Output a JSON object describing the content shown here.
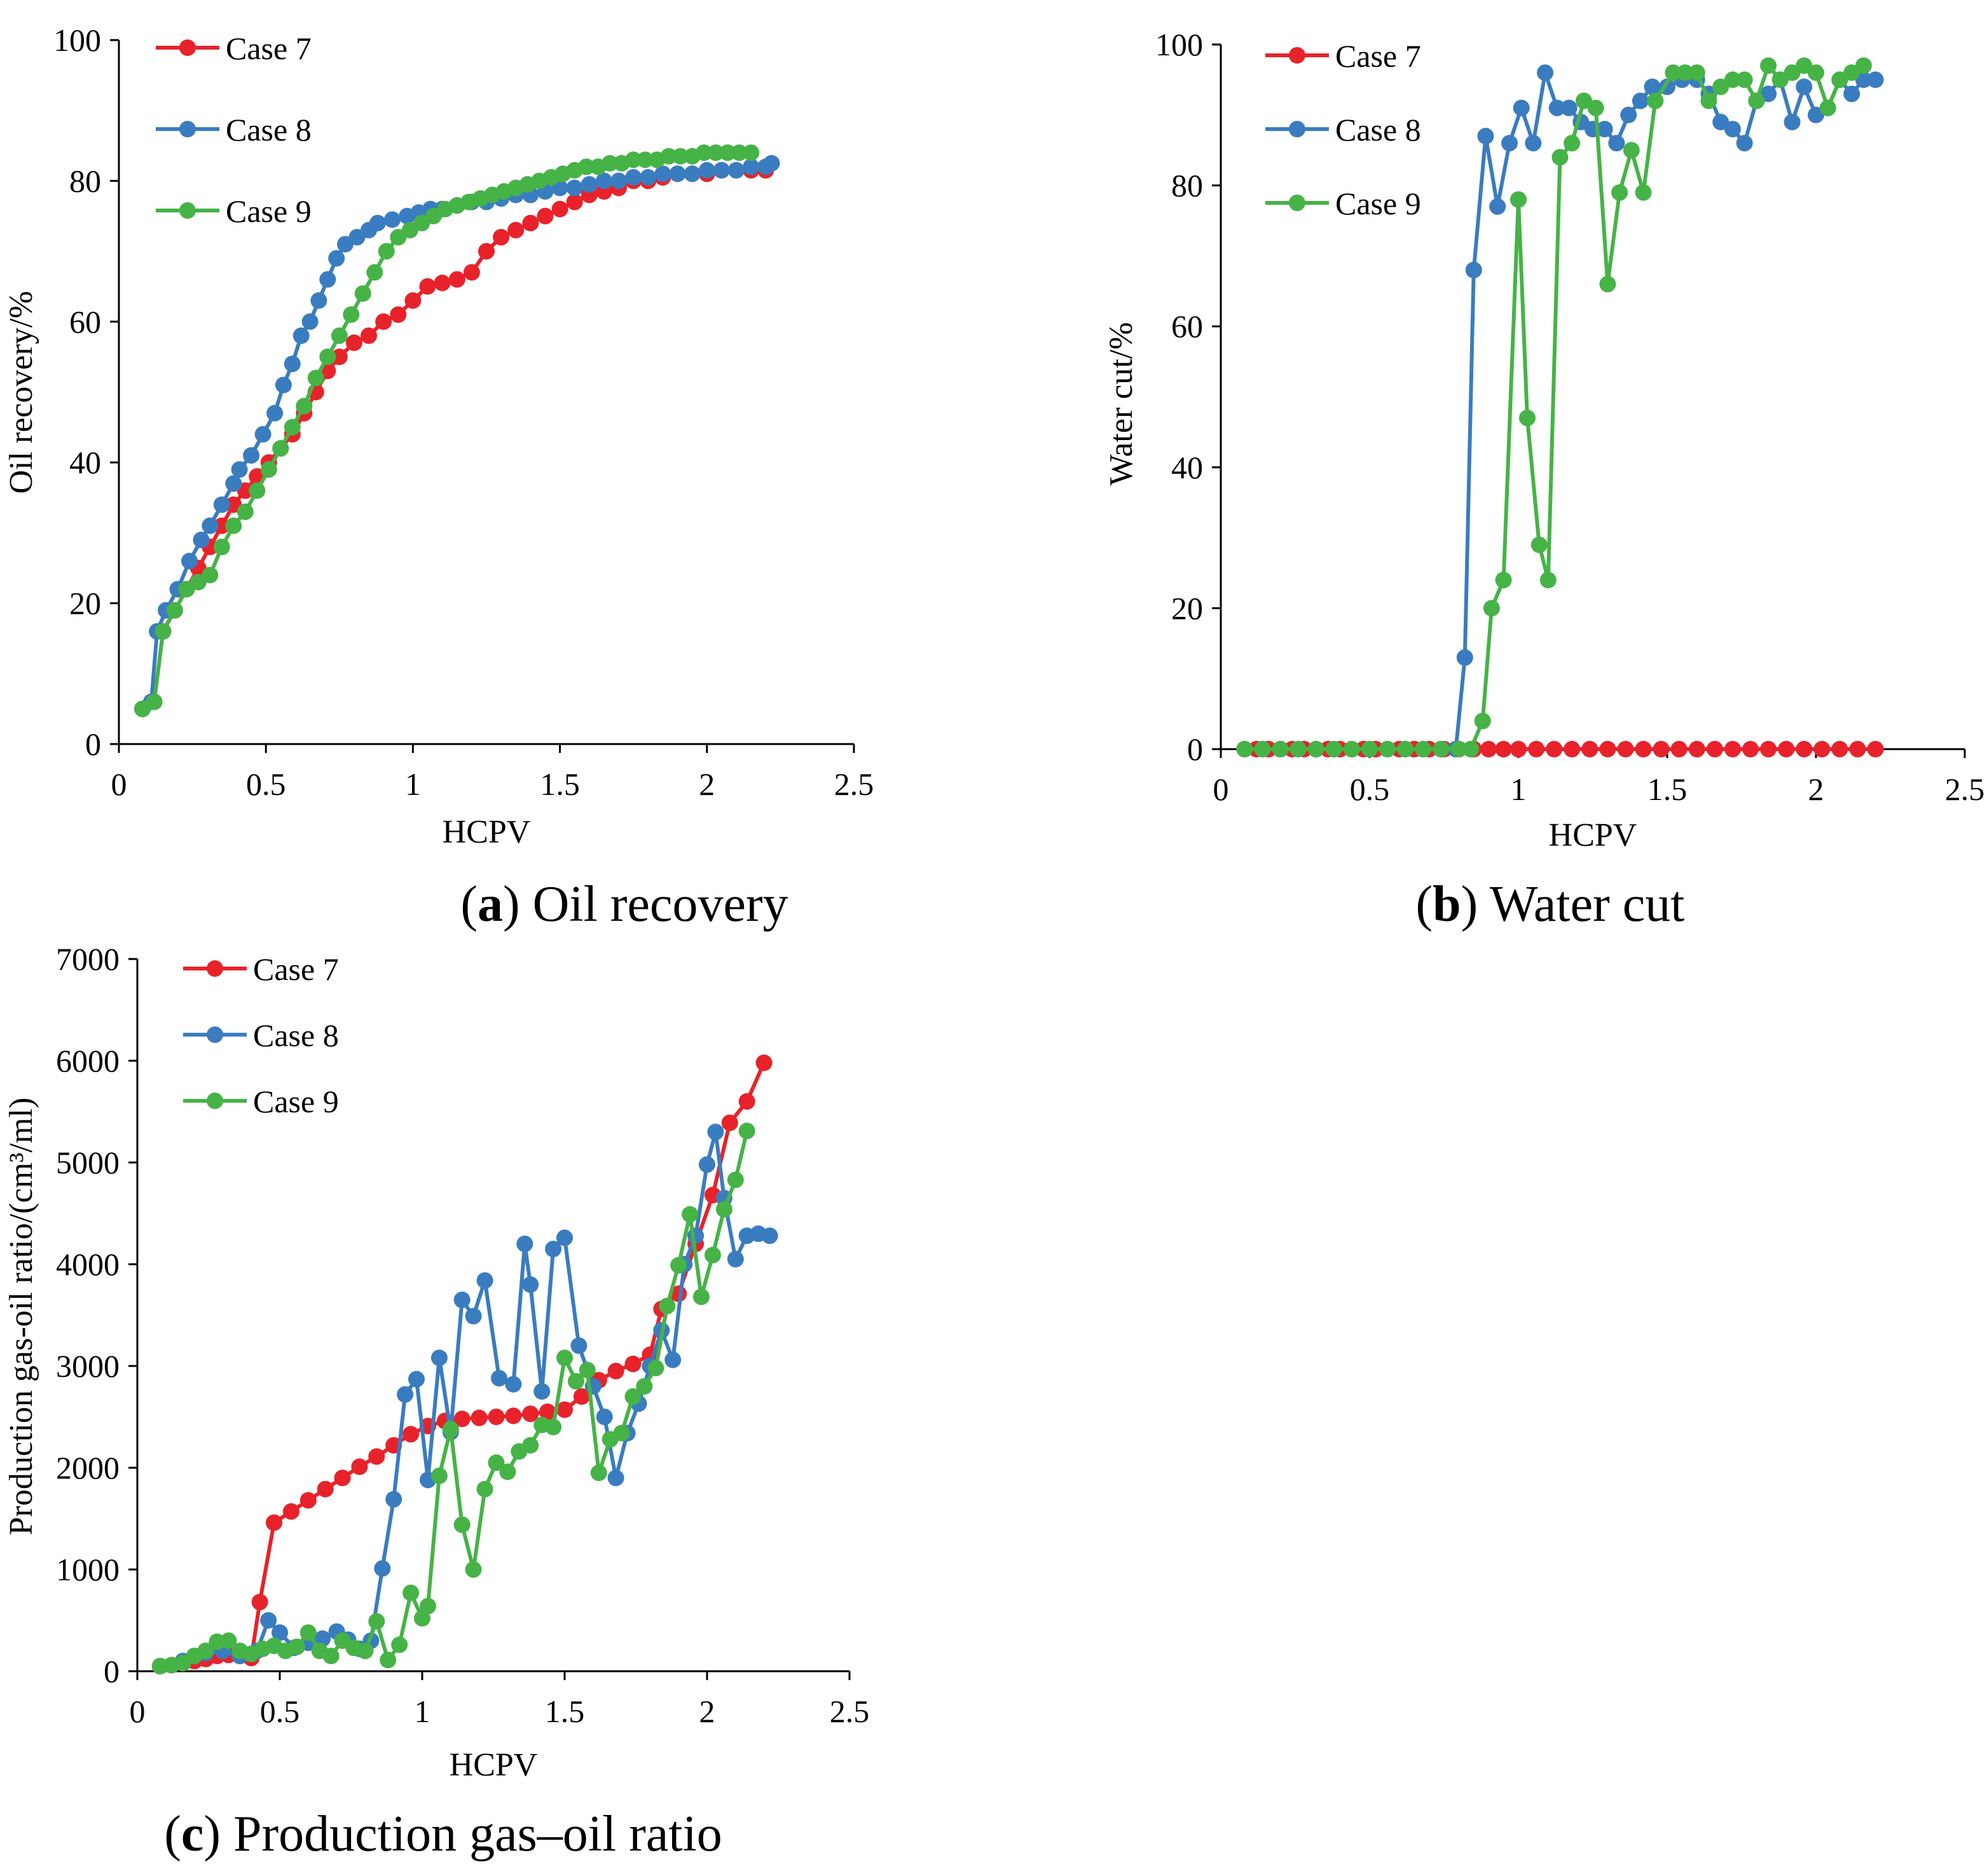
{
  "colors": {
    "case7": "#e8222a",
    "case8": "#3a7cc0",
    "case9": "#46b346",
    "axis": "#000000"
  },
  "chart_data": [
    {
      "type": "line",
      "caption_letter": "a",
      "caption_text": "Oil recovery",
      "xlabel": "HCPV",
      "ylabel": "Oil recovery/%",
      "xlim": [
        0,
        2.5
      ],
      "ylim": [
        0,
        100
      ],
      "xticks": [
        "0",
        "0.5",
        "1",
        "1.5",
        "2",
        "2.5"
      ],
      "yticks": [
        "0",
        "20",
        "40",
        "60",
        "80",
        "100"
      ],
      "legend_placement": "top-left",
      "series": [
        {
          "name": "Case 7",
          "color": "#e8222a",
          "x": [
            0.08,
            0.12,
            0.15,
            0.19,
            0.23,
            0.27,
            0.31,
            0.35,
            0.39,
            0.43,
            0.47,
            0.51,
            0.55,
            0.59,
            0.63,
            0.67,
            0.71,
            0.75,
            0.8,
            0.85,
            0.9,
            0.95,
            1.0,
            1.05,
            1.1,
            1.15,
            1.2,
            1.25,
            1.3,
            1.35,
            1.4,
            1.45,
            1.5,
            1.55,
            1.6,
            1.65,
            1.7,
            1.75,
            1.8,
            1.85,
            1.9,
            1.95,
            2.0,
            2.05,
            2.1,
            2.15,
            2.2
          ],
          "y": [
            5,
            6,
            16,
            19,
            22,
            25,
            28,
            31,
            34,
            36,
            38,
            40,
            42,
            44,
            47,
            50,
            53,
            55,
            57,
            58,
            60,
            61,
            63,
            65,
            65.5,
            66,
            67,
            70,
            72,
            73,
            74,
            75,
            76,
            77,
            78,
            78.5,
            79,
            80,
            80,
            80.5,
            81,
            81,
            81,
            81.5,
            81.5,
            81.5,
            81.5
          ]
        },
        {
          "name": "Case 8",
          "color": "#3a7cc0",
          "x": [
            0.08,
            0.11,
            0.13,
            0.16,
            0.2,
            0.24,
            0.28,
            0.31,
            0.35,
            0.39,
            0.41,
            0.45,
            0.49,
            0.53,
            0.56,
            0.59,
            0.62,
            0.65,
            0.68,
            0.71,
            0.74,
            0.77,
            0.81,
            0.85,
            0.88,
            0.93,
            0.98,
            1.02,
            1.06,
            1.1,
            1.15,
            1.2,
            1.25,
            1.3,
            1.35,
            1.4,
            1.45,
            1.5,
            1.55,
            1.6,
            1.65,
            1.7,
            1.75,
            1.8,
            1.85,
            1.9,
            1.95,
            2.0,
            2.05,
            2.1,
            2.15,
            2.2,
            2.22
          ],
          "y": [
            5,
            6,
            16,
            19,
            22,
            26,
            29,
            31,
            34,
            37,
            39,
            41,
            44,
            47,
            51,
            54,
            58,
            60,
            63,
            66,
            69,
            71,
            72,
            73,
            74,
            74.5,
            75,
            75.5,
            76,
            76,
            76.5,
            77,
            77,
            77.5,
            78,
            78,
            78.5,
            79,
            79,
            79.5,
            80,
            80,
            80.5,
            80.5,
            81,
            81,
            81,
            81.5,
            81.5,
            81.5,
            82,
            82,
            82.5
          ]
        },
        {
          "name": "Case 9",
          "color": "#46b346",
          "x": [
            0.08,
            0.12,
            0.15,
            0.19,
            0.23,
            0.27,
            0.31,
            0.35,
            0.39,
            0.43,
            0.47,
            0.51,
            0.55,
            0.59,
            0.63,
            0.67,
            0.71,
            0.75,
            0.79,
            0.83,
            0.87,
            0.91,
            0.95,
            0.99,
            1.03,
            1.07,
            1.11,
            1.15,
            1.19,
            1.23,
            1.27,
            1.31,
            1.35,
            1.39,
            1.43,
            1.47,
            1.51,
            1.55,
            1.59,
            1.63,
            1.67,
            1.71,
            1.75,
            1.79,
            1.83,
            1.87,
            1.91,
            1.95,
            1.99,
            2.03,
            2.07,
            2.11,
            2.15
          ],
          "y": [
            5,
            6,
            16,
            19,
            22,
            23,
            24,
            28,
            31,
            33,
            36,
            39,
            42,
            45,
            48,
            52,
            55,
            58,
            61,
            64,
            67,
            70,
            72,
            73,
            74,
            75,
            76,
            76.5,
            77,
            77.5,
            78,
            78.5,
            79,
            79.5,
            80,
            80.5,
            81,
            81.5,
            82,
            82,
            82.5,
            82.5,
            83,
            83,
            83,
            83.5,
            83.5,
            83.5,
            84,
            84,
            84,
            84,
            84
          ]
        }
      ]
    },
    {
      "type": "line",
      "caption_letter": "b",
      "caption_text": "Water cut",
      "xlabel": "HCPV",
      "ylabel": "Water cut/%",
      "xlim": [
        0,
        2.5
      ],
      "ylim": [
        0,
        100
      ],
      "xticks": [
        "0",
        "0.5",
        "1",
        "1.5",
        "2",
        "2.5"
      ],
      "yticks": [
        "0",
        "20",
        "40",
        "60",
        "80",
        "100"
      ],
      "legend_placement": "top-left",
      "series": [
        {
          "name": "Case 7",
          "color": "#e8222a",
          "x": [
            0.08,
            0.12,
            0.16,
            0.2,
            0.24,
            0.28,
            0.32,
            0.36,
            0.4,
            0.44,
            0.48,
            0.52,
            0.56,
            0.6,
            0.65,
            0.7,
            0.75,
            0.8,
            0.85,
            0.9,
            0.95,
            1.0,
            1.06,
            1.12,
            1.18,
            1.24,
            1.3,
            1.36,
            1.42,
            1.48,
            1.54,
            1.6,
            1.66,
            1.72,
            1.78,
            1.84,
            1.9,
            1.96,
            2.02,
            2.08,
            2.14,
            2.2
          ],
          "y": [
            0,
            0,
            0,
            0,
            0,
            0,
            0,
            0,
            0,
            0,
            0,
            0,
            0,
            0,
            0,
            0,
            0,
            0,
            0,
            0,
            0,
            0,
            0,
            0,
            0,
            0,
            0,
            0,
            0,
            0,
            0,
            0,
            0,
            0,
            0,
            0,
            0,
            0,
            0,
            0,
            0,
            0
          ]
        },
        {
          "name": "Case 8",
          "color": "#3a7cc0",
          "x": [
            0.08,
            0.14,
            0.2,
            0.26,
            0.32,
            0.38,
            0.44,
            0.5,
            0.56,
            0.62,
            0.68,
            0.74,
            0.79,
            0.82,
            0.85,
            0.89,
            0.93,
            0.97,
            1.01,
            1.05,
            1.09,
            1.13,
            1.17,
            1.21,
            1.25,
            1.29,
            1.33,
            1.37,
            1.41,
            1.45,
            1.5,
            1.55,
            1.6,
            1.64,
            1.68,
            1.72,
            1.76,
            1.8,
            1.84,
            1.88,
            1.92,
            1.96,
            2.0,
            2.04,
            2.08,
            2.12,
            2.16,
            2.2
          ],
          "y": [
            0,
            0,
            0,
            0,
            0,
            0,
            0,
            0,
            0,
            0,
            0,
            0,
            0,
            13,
            68,
            87,
            77,
            86,
            91,
            86,
            96,
            91,
            91,
            89,
            88,
            88,
            86,
            90,
            92,
            94,
            94,
            95,
            95,
            93,
            89,
            88,
            86,
            92,
            93,
            95,
            89,
            94,
            90,
            91,
            95,
            93,
            95,
            95
          ]
        },
        {
          "name": "Case 9",
          "color": "#46b346",
          "x": [
            0.08,
            0.14,
            0.2,
            0.26,
            0.32,
            0.38,
            0.44,
            0.5,
            0.56,
            0.62,
            0.68,
            0.74,
            0.8,
            0.84,
            0.88,
            0.91,
            0.95,
            1.0,
            1.03,
            1.07,
            1.1,
            1.14,
            1.18,
            1.22,
            1.26,
            1.3,
            1.34,
            1.38,
            1.42,
            1.46,
            1.52,
            1.56,
            1.6,
            1.64,
            1.68,
            1.72,
            1.76,
            1.8,
            1.84,
            1.88,
            1.92,
            1.96,
            2.0,
            2.04,
            2.08,
            2.12,
            2.16
          ],
          "y": [
            0,
            0,
            0,
            0,
            0,
            0,
            0,
            0,
            0,
            0,
            0,
            0,
            0,
            0,
            4,
            20,
            24,
            78,
            47,
            29,
            24,
            84,
            86,
            92,
            91,
            66,
            79,
            85,
            79,
            92,
            96,
            96,
            96,
            92,
            94,
            95,
            95,
            92,
            97,
            95,
            96,
            97,
            96,
            91,
            95,
            96,
            97
          ]
        }
      ]
    },
    {
      "type": "line",
      "caption_letter": "c",
      "caption_text": "Production gas–oil ratio",
      "xlabel": "HCPV",
      "ylabel": "Production gas-oil ratio/(cm³/ml)",
      "xlim": [
        0,
        2.5
      ],
      "ylim": [
        0,
        7000
      ],
      "xticks": [
        "0",
        "0.5",
        "1",
        "1.5",
        "2",
        "2.5"
      ],
      "yticks": [
        "0",
        "1000",
        "2000",
        "3000",
        "4000",
        "5000",
        "6000",
        "7000"
      ],
      "legend_placement": "top-left",
      "series": [
        {
          "name": "Case 7",
          "color": "#e8222a",
          "x": [
            0.08,
            0.12,
            0.16,
            0.2,
            0.24,
            0.28,
            0.32,
            0.36,
            0.4,
            0.43,
            0.48,
            0.54,
            0.6,
            0.66,
            0.72,
            0.78,
            0.84,
            0.9,
            0.96,
            1.02,
            1.08,
            1.14,
            1.2,
            1.26,
            1.32,
            1.38,
            1.44,
            1.5,
            1.56,
            1.62,
            1.68,
            1.74,
            1.8,
            1.84,
            1.9,
            1.96,
            2.02,
            2.08,
            2.14,
            2.2
          ],
          "y": [
            50,
            60,
            80,
            100,
            120,
            150,
            160,
            150,
            130,
            680,
            1460,
            1570,
            1680,
            1790,
            1900,
            2010,
            2110,
            2220,
            2330,
            2410,
            2460,
            2480,
            2490,
            2500,
            2510,
            2530,
            2550,
            2570,
            2700,
            2860,
            2950,
            3020,
            3110,
            3560,
            3710,
            4200,
            4680,
            5390,
            5600,
            5980
          ]
        },
        {
          "name": "Case 8",
          "color": "#3a7cc0",
          "x": [
            0.08,
            0.12,
            0.16,
            0.2,
            0.24,
            0.3,
            0.36,
            0.42,
            0.46,
            0.5,
            0.55,
            0.6,
            0.65,
            0.7,
            0.74,
            0.78,
            0.82,
            0.86,
            0.9,
            0.94,
            0.98,
            1.02,
            1.06,
            1.1,
            1.14,
            1.18,
            1.22,
            1.27,
            1.32,
            1.36,
            1.38,
            1.42,
            1.46,
            1.5,
            1.55,
            1.6,
            1.64,
            1.68,
            1.72,
            1.76,
            1.8,
            1.84,
            1.88,
            1.92,
            1.96,
            2.0,
            2.03,
            2.06,
            2.1,
            2.14,
            2.18,
            2.22
          ],
          "y": [
            50,
            60,
            100,
            150,
            180,
            200,
            150,
            200,
            500,
            380,
            230,
            280,
            320,
            390,
            310,
            220,
            300,
            1010,
            1690,
            2720,
            2870,
            1880,
            3080,
            2350,
            3650,
            3490,
            3840,
            2880,
            2820,
            4200,
            3800,
            2750,
            4150,
            4260,
            3200,
            2800,
            2500,
            1900,
            2340,
            2630,
            3000,
            3350,
            3060,
            4000,
            4280,
            4980,
            5300,
            4650,
            4050,
            4280,
            4300,
            4280
          ]
        },
        {
          "name": "Case 9",
          "color": "#46b346",
          "x": [
            0.08,
            0.12,
            0.16,
            0.2,
            0.24,
            0.28,
            0.32,
            0.36,
            0.4,
            0.44,
            0.48,
            0.52,
            0.56,
            0.6,
            0.64,
            0.68,
            0.72,
            0.76,
            0.8,
            0.84,
            0.88,
            0.92,
            0.96,
            1.0,
            1.02,
            1.06,
            1.1,
            1.14,
            1.18,
            1.22,
            1.26,
            1.3,
            1.34,
            1.38,
            1.42,
            1.46,
            1.5,
            1.54,
            1.58,
            1.62,
            1.66,
            1.7,
            1.74,
            1.78,
            1.82,
            1.86,
            1.9,
            1.94,
            1.98,
            2.02,
            2.06,
            2.1,
            2.14
          ],
          "y": [
            50,
            60,
            80,
            150,
            200,
            290,
            300,
            200,
            170,
            220,
            250,
            200,
            240,
            380,
            200,
            150,
            300,
            230,
            200,
            490,
            110,
            260,
            770,
            520,
            640,
            1920,
            2380,
            1440,
            1000,
            1790,
            2050,
            1960,
            2160,
            2220,
            2420,
            2400,
            3080,
            2850,
            2960,
            1950,
            2280,
            2340,
            2700,
            2800,
            2980,
            3590,
            3990,
            4490,
            3680,
            4090,
            4540,
            4830,
            5310
          ]
        }
      ]
    }
  ]
}
